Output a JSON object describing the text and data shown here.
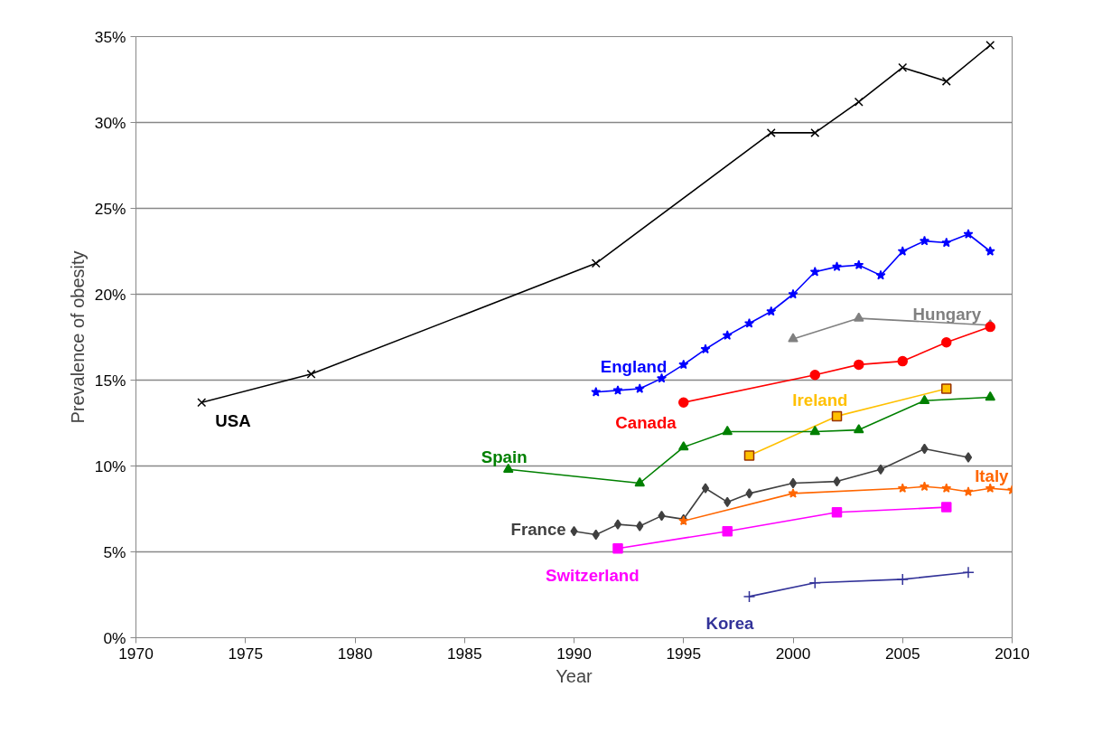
{
  "chart_data": {
    "type": "line",
    "xlabel": "Year",
    "ylabel": "Prevalence of obesity",
    "xlim": [
      1970,
      2010
    ],
    "xticks": [
      1970,
      1975,
      1980,
      1985,
      1990,
      1995,
      2000,
      2005,
      2010
    ],
    "ylim": [
      0,
      35
    ],
    "yticks": [
      {
        "value": 0,
        "label": "0%"
      },
      {
        "value": 5,
        "label": "5%"
      },
      {
        "value": 10,
        "label": "10%"
      },
      {
        "value": 15,
        "label": "15%"
      },
      {
        "value": 20,
        "label": "20%"
      },
      {
        "value": 25,
        "label": "25%"
      },
      {
        "value": 30,
        "label": "30%"
      },
      {
        "value": 35,
        "label": "35%"
      }
    ],
    "grid": "y",
    "legend": false,
    "series": [
      {
        "name": "USA",
        "color": "#000000",
        "marker": "x",
        "x": [
          1973,
          1978,
          1991,
          1999,
          2001,
          2003,
          2005,
          2007,
          2009
        ],
        "values": [
          13.7,
          15.35,
          21.8,
          29.4,
          29.4,
          31.2,
          33.2,
          32.4,
          34.5
        ]
      },
      {
        "name": "England",
        "color": "#0000ff",
        "marker": "star",
        "x": [
          1991,
          1992,
          1993,
          1994,
          1995,
          1996,
          1997,
          1998,
          1999,
          2000,
          2001,
          2002,
          2003,
          2004,
          2005,
          2006,
          2007,
          2008,
          2009
        ],
        "values": [
          14.3,
          14.4,
          14.5,
          15.1,
          15.9,
          16.8,
          17.6,
          18.3,
          19.0,
          20.0,
          21.3,
          21.6,
          21.7,
          21.1,
          22.5,
          23.1,
          23.0,
          23.5,
          22.5
        ]
      },
      {
        "name": "Hungary",
        "color": "#808080",
        "marker": "triangle",
        "x": [
          2000,
          2003,
          2009
        ],
        "values": [
          17.4,
          18.6,
          18.2
        ]
      },
      {
        "name": "Canada",
        "color": "#ff0000",
        "marker": "circle",
        "x": [
          1995,
          2001,
          2003,
          2005,
          2007,
          2009
        ],
        "values": [
          13.7,
          15.3,
          15.9,
          16.1,
          17.2,
          18.1
        ]
      },
      {
        "name": "Ireland",
        "color": "#ffc000",
        "marker": "square",
        "x": [
          1998,
          2002,
          2007
        ],
        "values": [
          10.6,
          12.9,
          14.5
        ]
      },
      {
        "name": "Spain",
        "color": "#008000",
        "marker": "triangle",
        "x": [
          1987,
          1993,
          1995,
          1997,
          2001,
          2003,
          2006,
          2009
        ],
        "values": [
          9.8,
          9.0,
          11.1,
          12.0,
          12.0,
          12.1,
          13.8,
          14.0
        ]
      },
      {
        "name": "France",
        "color": "#404040",
        "marker": "diamond",
        "x": [
          1990,
          1991,
          1992,
          1993,
          1994,
          1995,
          1996,
          1997,
          1998,
          2000,
          2002,
          2004,
          2006,
          2008
        ],
        "values": [
          6.2,
          6.0,
          6.6,
          6.5,
          7.1,
          6.9,
          8.7,
          7.9,
          8.4,
          9.0,
          9.1,
          9.8,
          11.0,
          10.5
        ]
      },
      {
        "name": "Italy",
        "color": "#ff6600",
        "marker": "star",
        "x": [
          1995,
          2000,
          2005,
          2006,
          2007,
          2008,
          2009,
          2010
        ],
        "values": [
          6.8,
          8.4,
          8.7,
          8.8,
          8.7,
          8.5,
          8.7,
          8.6
        ]
      },
      {
        "name": "Switzerland",
        "color": "#ff00ff",
        "marker": "square",
        "x": [
          1992,
          1997,
          2002,
          2007
        ],
        "values": [
          5.2,
          6.2,
          7.3,
          7.6
        ]
      },
      {
        "name": "Korea",
        "color": "#333399",
        "marker": "cross",
        "x": [
          1998,
          2001,
          2005,
          2008
        ],
        "values": [
          2.4,
          3.2,
          3.4,
          3.8
        ]
      }
    ]
  }
}
